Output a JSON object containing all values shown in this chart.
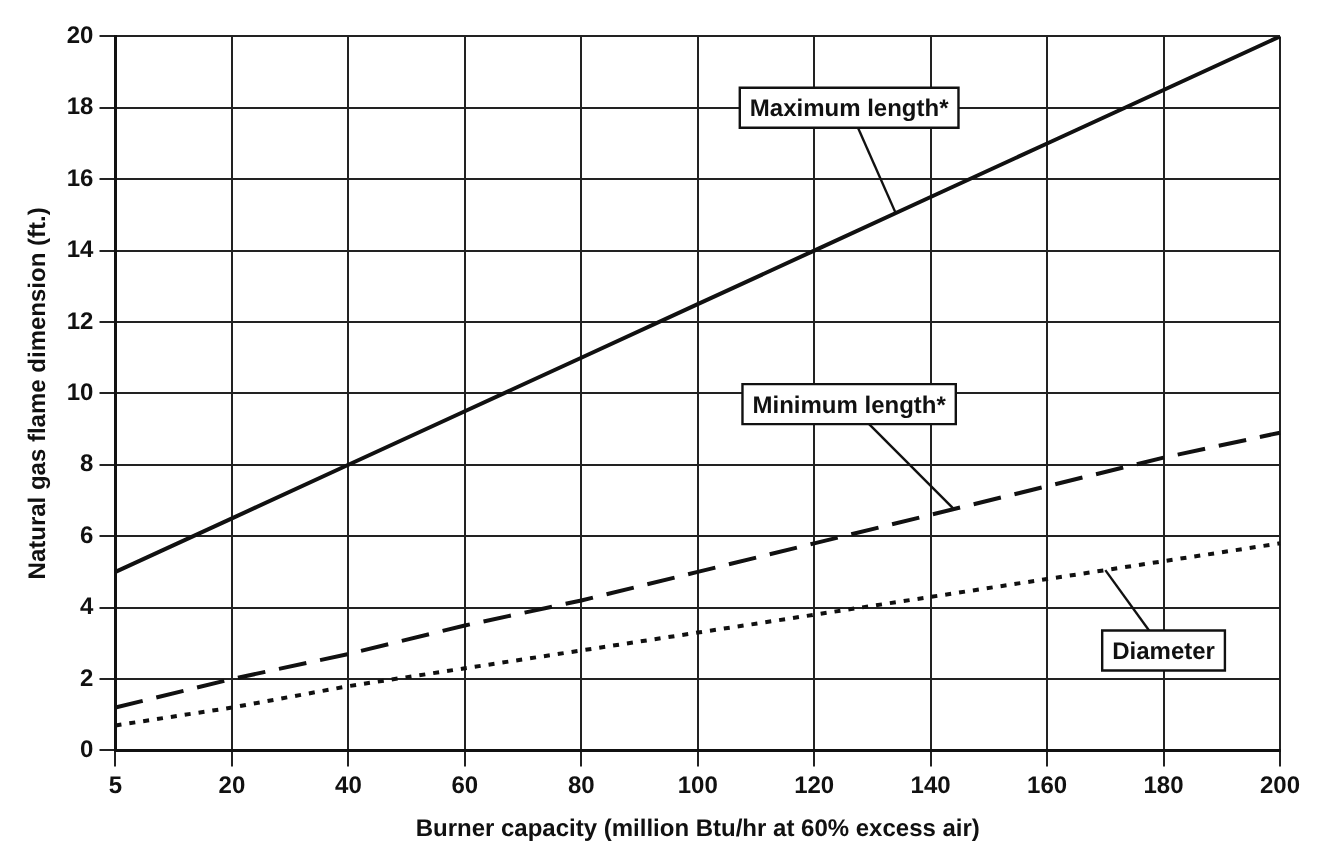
{
  "chart_data": {
    "type": "line",
    "xlabel": "Burner capacity (million Btu/hr at 60% excess air)",
    "ylabel": "Natural gas flame dimension (ft.)",
    "categories": [
      "5",
      "20",
      "40",
      "60",
      "80",
      "100",
      "120",
      "140",
      "160",
      "180",
      "200"
    ],
    "ylim": [
      0,
      20
    ],
    "yticks": [
      0,
      2,
      4,
      6,
      8,
      10,
      12,
      14,
      16,
      18,
      20
    ],
    "grid": true,
    "marker": "none",
    "series": [
      {
        "name": "Maximum length*",
        "color": "#111111",
        "line_style": "solid",
        "values": [
          5,
          6.5,
          8,
          9.5,
          11,
          12.5,
          14,
          15.5,
          17,
          18.5,
          20
        ]
      },
      {
        "name": "Minimum length*",
        "color": "#111111",
        "line_style": "dashed",
        "values": [
          1.2,
          2,
          2.7,
          3.5,
          4.2,
          5,
          5.8,
          6.6,
          7.4,
          8.2,
          8.9
        ]
      },
      {
        "name": "Diameter",
        "color": "#111111",
        "line_style": "dotted",
        "values": [
          0.7,
          1.2,
          1.8,
          2.3,
          2.8,
          3.3,
          3.8,
          4.3,
          4.8,
          5.3,
          5.8
        ]
      }
    ]
  }
}
